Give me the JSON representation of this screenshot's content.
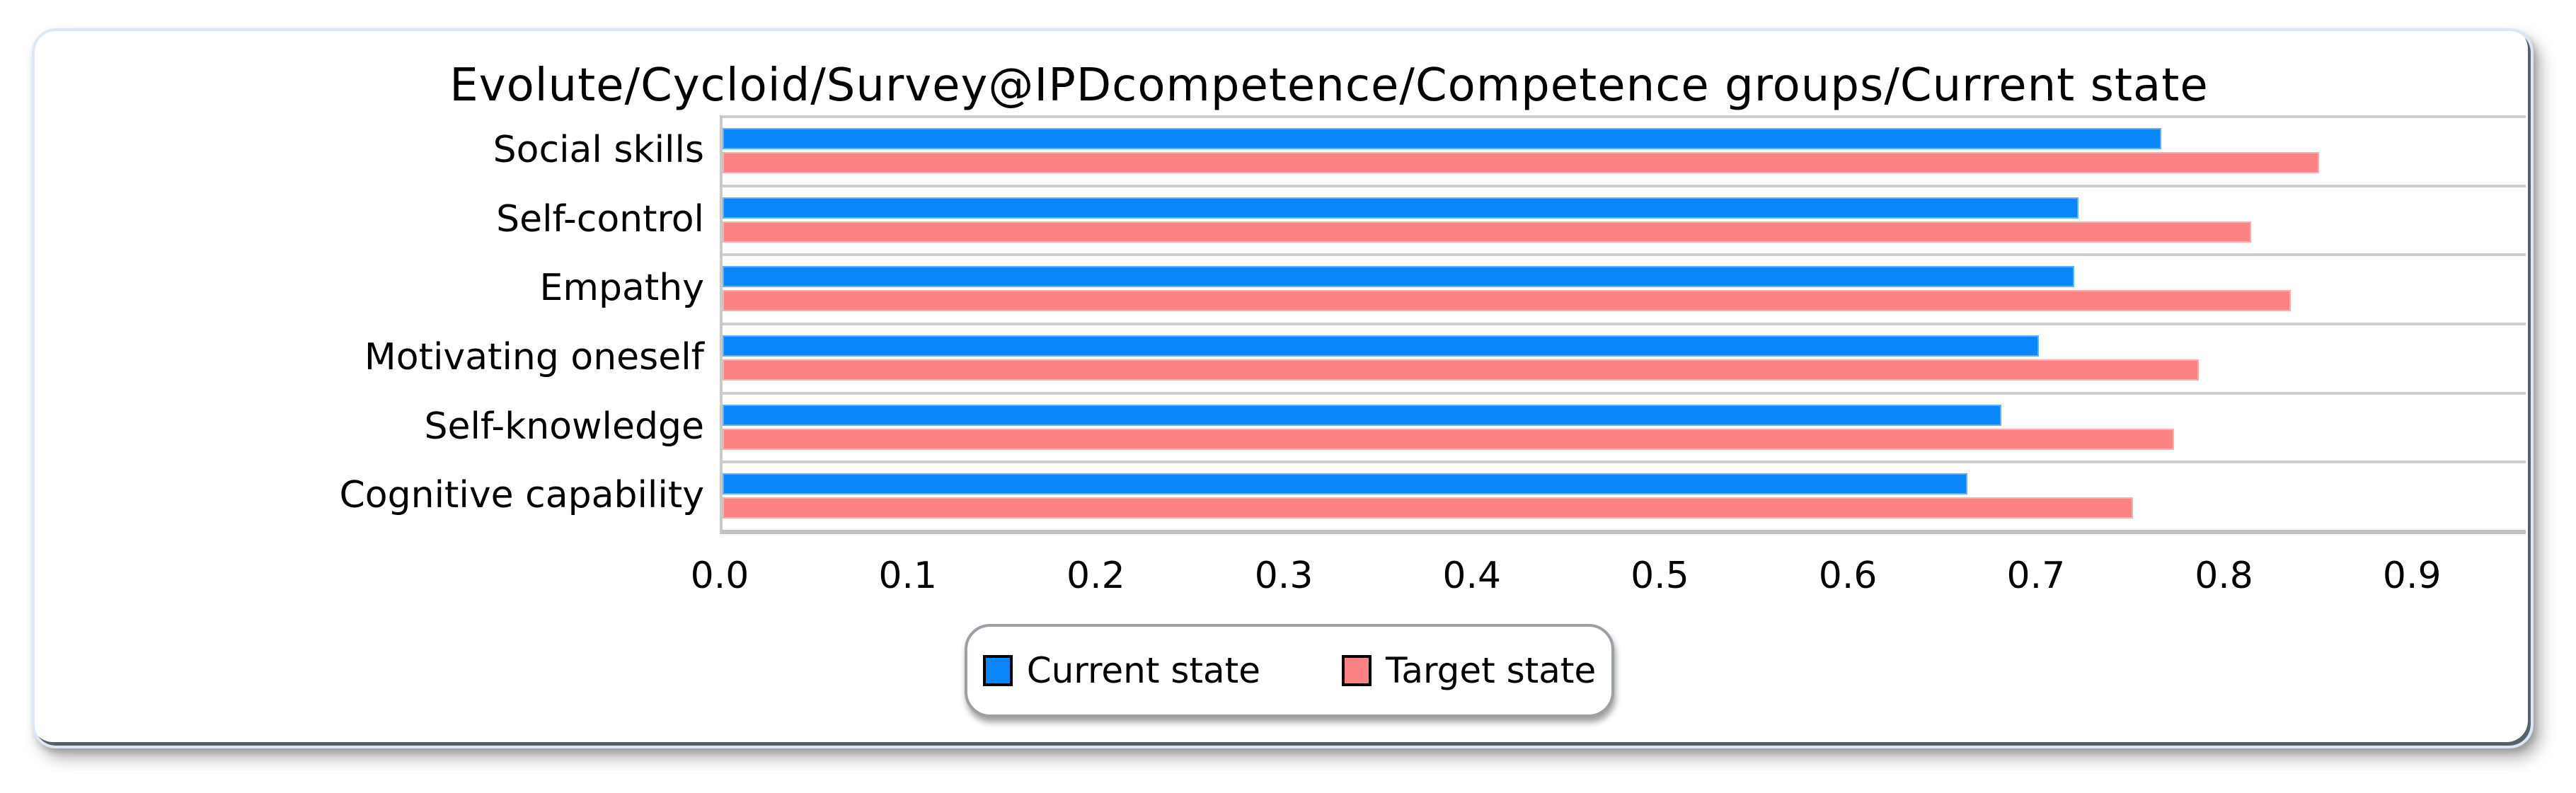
{
  "title": "Evolute/Cycloid/Survey@IPDcompetence/Competence groups/Current state",
  "chart_data": {
    "type": "bar",
    "orientation": "horizontal",
    "title": "Evolute/Cycloid/Survey@IPDcompetence/Competence groups/Current state",
    "categories": [
      "Social skills",
      "Self-control",
      "Empathy",
      "Motivating oneself",
      "Self-knowledge",
      "Cognitive capability"
    ],
    "series": [
      {
        "name": "Current state",
        "color": "#0a86fa",
        "values": [
          0.765,
          0.721,
          0.719,
          0.7,
          0.68,
          0.662
        ]
      },
      {
        "name": "Target state",
        "color": "#fb8383",
        "values": [
          0.849,
          0.813,
          0.834,
          0.785,
          0.772,
          0.75
        ]
      }
    ],
    "xlabel": "",
    "ylabel": "",
    "xlim": [
      0,
      0.959
    ],
    "xticks": [
      0.0,
      0.1,
      0.2,
      0.3,
      0.4,
      0.5,
      0.6,
      0.7,
      0.8,
      0.9
    ],
    "xtick_labels": [
      "0.0",
      "0.1",
      "0.2",
      "0.3",
      "0.4",
      "0.5",
      "0.6",
      "0.7",
      "0.8",
      "0.9"
    ],
    "grid": "horizontal row separators only",
    "legend_position": "bottom-center"
  },
  "legend": {
    "items": [
      {
        "label": "Current state",
        "color": "#0a86fa"
      },
      {
        "label": "Target state",
        "color": "#fb8383"
      }
    ]
  },
  "colors": {
    "bar_current": "#0a86fa",
    "bar_target": "#fb8383",
    "gridline": "#cdcdcd",
    "axis_line": "#c2c2c2",
    "panel_border": "#dbe7f5",
    "panel_edge_dark": "#55606a",
    "legend_border": "#9aa0a6",
    "text": "#000000",
    "background": "#ffffff"
  }
}
